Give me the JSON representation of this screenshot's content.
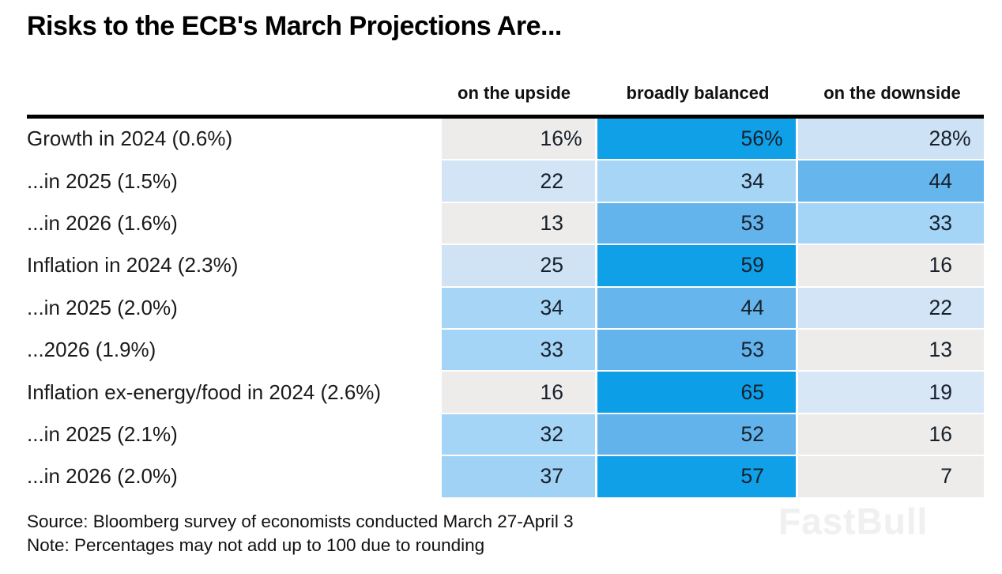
{
  "title": "Risks to the ECB's March Projections Are...",
  "watermark": "FastBull",
  "footer": {
    "source": "Source: Bloomberg survey of economists conducted March 27-April 3",
    "note": "Note: Percentages may not add up to 100 due to rounding"
  },
  "colors": {
    "scale_none": "#edecea",
    "scale_low": "#d2e4f5",
    "scale_mid": "#a4d4f6",
    "scale_high": "#63b3ec",
    "scale_max": "#0fa0e8",
    "rule": "#000000"
  },
  "chart_data": {
    "type": "heatmap",
    "title": "Risks to the ECB's March Projections Are...",
    "columns": [
      "on the upside",
      "broadly balanced",
      "on the downside"
    ],
    "value_unit": "percent of surveyed economists",
    "legend_position": "none",
    "rows": [
      {
        "label": "Growth in 2024 (0.6%)",
        "values": [
          16,
          56,
          28
        ],
        "show_percent": true,
        "colors": [
          "#edecea",
          "#0fa0e8",
          "#cde2f4"
        ]
      },
      {
        "label": "...in 2025 (1.5%)",
        "values": [
          22,
          34,
          44
        ],
        "show_percent": false,
        "colors": [
          "#d2e4f5",
          "#a6d5f6",
          "#66b5ed"
        ]
      },
      {
        "label": "...in 2026 (1.6%)",
        "values": [
          13,
          53,
          33
        ],
        "show_percent": false,
        "colors": [
          "#edecea",
          "#63b3ec",
          "#a4d4f6"
        ]
      },
      {
        "label": "Inflation in 2024 (2.3%)",
        "values": [
          25,
          59,
          16
        ],
        "show_percent": false,
        "colors": [
          "#cfe3f5",
          "#0fa0e8",
          "#edecea"
        ]
      },
      {
        "label": "...in 2025 (2.0%)",
        "values": [
          34,
          44,
          22
        ],
        "show_percent": false,
        "colors": [
          "#a6d5f6",
          "#66b5ed",
          "#d2e4f5"
        ]
      },
      {
        "label": "...2026 (1.9%)",
        "values": [
          33,
          53,
          13
        ],
        "show_percent": false,
        "colors": [
          "#a4d4f6",
          "#63b3ec",
          "#edecea"
        ]
      },
      {
        "label": "Inflation ex-energy/food in 2024 (2.6%)",
        "values": [
          16,
          65,
          19
        ],
        "show_percent": false,
        "colors": [
          "#edecea",
          "#0c9fe8",
          "#d8e7f6"
        ]
      },
      {
        "label": "...in 2025 (2.1%)",
        "values": [
          32,
          52,
          16
        ],
        "show_percent": false,
        "colors": [
          "#a4d4f6",
          "#62b3ec",
          "#edecea"
        ]
      },
      {
        "label": "...in 2026 (2.0%)",
        "values": [
          37,
          57,
          7
        ],
        "show_percent": false,
        "colors": [
          "#9fd2f5",
          "#0fa0e8",
          "#edecea"
        ]
      }
    ]
  }
}
